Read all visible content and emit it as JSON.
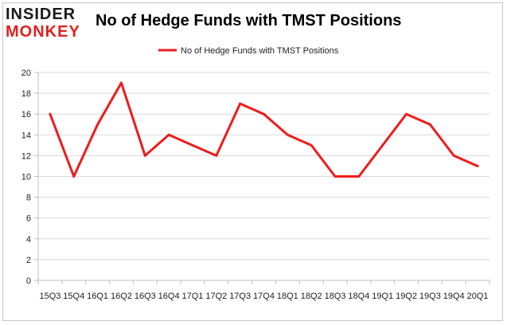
{
  "brand": {
    "line1": "INSIDER",
    "line2": "MONKEY"
  },
  "chart_data": {
    "type": "line",
    "title": "No of Hedge Funds with TMST Positions",
    "xlabel": "",
    "ylabel": "",
    "categories": [
      "15Q3",
      "15Q4",
      "16Q1",
      "16Q2",
      "16Q3",
      "16Q4",
      "17Q1",
      "17Q2",
      "17Q3",
      "17Q4",
      "18Q1",
      "18Q2",
      "18Q3",
      "18Q4",
      "19Q1",
      "19Q2",
      "19Q3",
      "19Q4",
      "20Q1"
    ],
    "series": [
      {
        "name": "No of Hedge Funds with TMST Positions",
        "values": [
          16,
          10,
          15,
          19,
          12,
          14,
          13,
          12,
          17,
          16,
          14,
          13,
          10,
          10,
          13,
          16,
          15,
          12,
          11
        ]
      }
    ],
    "ylim": [
      0,
      20
    ],
    "yticks": [
      0,
      2,
      4,
      6,
      8,
      10,
      12,
      14,
      16,
      18,
      20
    ],
    "grid": true,
    "legend": "top-center",
    "colors": {
      "line": "#ee1c1c",
      "grid": "#d9d9d9",
      "axis": "#bfbfbf"
    }
  }
}
